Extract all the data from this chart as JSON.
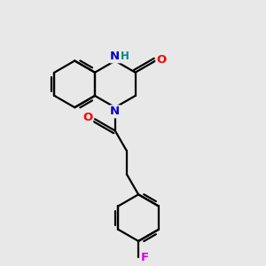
{
  "background_color": "#e8e8e8",
  "bond_color": "#000000",
  "atom_colors": {
    "N": "#0000cc",
    "O": "#ff0000",
    "F": "#dd00dd",
    "H": "#008888",
    "C": "#000000"
  },
  "figsize": [
    3.0,
    3.0
  ],
  "dpi": 100,
  "lw": 1.6,
  "font_size": 9.5
}
